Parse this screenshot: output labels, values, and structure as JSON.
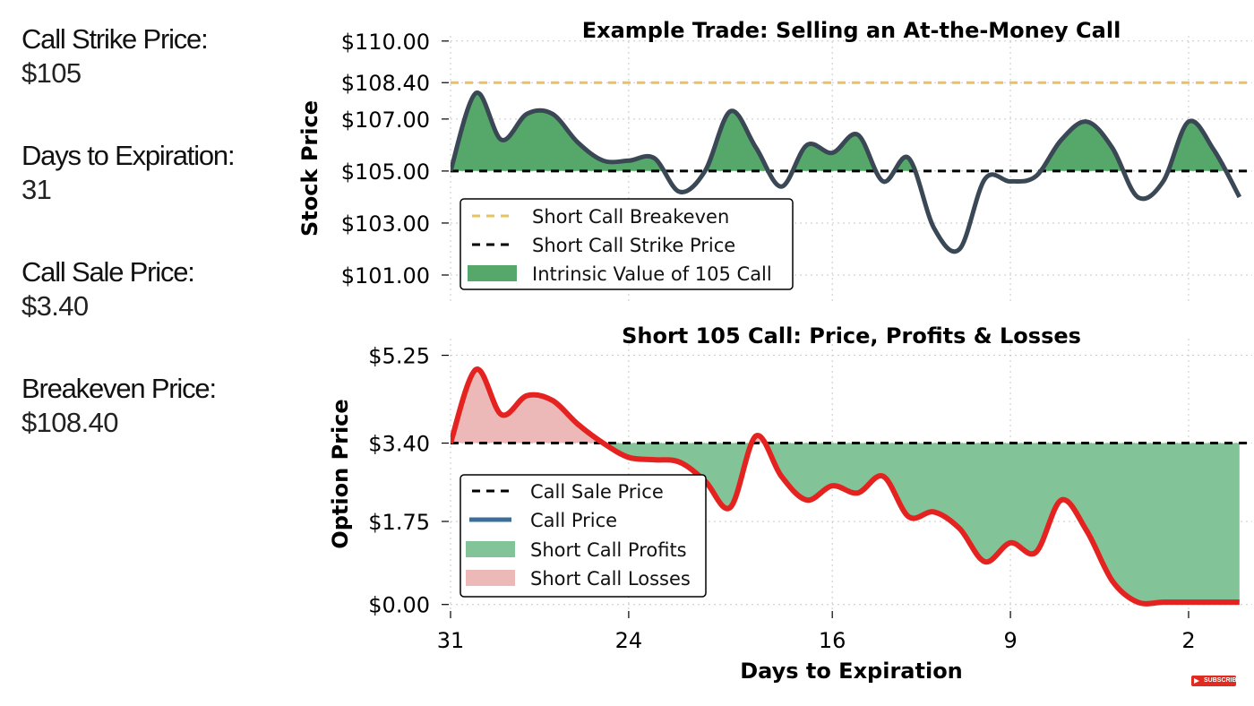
{
  "info": {
    "items": [
      {
        "label": "Call Strike Price:",
        "value": "$105"
      },
      {
        "label": "Days to Expiration:",
        "value": "31"
      },
      {
        "label": "Call Sale Price:",
        "value": "$3.40"
      },
      {
        "label": "Breakeven Price:",
        "value": "$108.40"
      }
    ]
  },
  "subscribe_badge": "SUBSCRIBE",
  "colors": {
    "stock_line": "#3a4754",
    "intrinsic_fill": "#55a86a",
    "breakeven": "#e8c25a",
    "option_line": "#e42320",
    "profit_fill": "#82c397",
    "loss_fill": "#edb8b8",
    "call_price_legend": "#3b6f9a"
  },
  "chart_data": [
    {
      "type": "line",
      "title": "Example Trade: Selling an At-the-Money Call",
      "ylabel": "Stock Price",
      "xlabel": "",
      "xlim": [
        31,
        -0.5
      ],
      "ylim": [
        100.0,
        110.2
      ],
      "yticks": [
        "$110.00",
        "$108.40",
        "$107.00",
        "$105.00",
        "$103.00",
        "$101.00"
      ],
      "ytick_values": [
        110,
        108.4,
        107,
        105,
        103,
        101
      ],
      "xticks": [
        31,
        24,
        16,
        9,
        2
      ],
      "grid": true,
      "legend_position": "lower-left",
      "legend": [
        "Short Call Breakeven",
        "Short Call Strike Price",
        "Intrinsic Value of 105 Call"
      ],
      "reference_lines": [
        {
          "name": "Short Call Breakeven",
          "y": 108.4,
          "style": "dashed"
        },
        {
          "name": "Short Call Strike Price",
          "y": 105.0,
          "style": "dashed"
        }
      ],
      "series": [
        {
          "name": "Stock Price",
          "x": [
            31,
            30,
            29,
            28,
            27,
            26,
            25,
            24,
            23,
            22,
            21,
            20,
            19,
            18,
            17,
            16,
            15,
            14,
            13,
            12,
            11,
            10,
            9,
            8,
            7,
            6,
            5,
            4,
            3,
            2,
            1,
            0
          ],
          "y": [
            105.0,
            108.0,
            106.2,
            107.2,
            107.2,
            106.1,
            105.4,
            105.4,
            105.5,
            104.2,
            105.0,
            107.3,
            105.9,
            104.4,
            106.0,
            105.7,
            106.4,
            104.6,
            105.5,
            102.8,
            102.0,
            104.7,
            104.6,
            104.8,
            106.2,
            106.9,
            105.9,
            104.0,
            104.6,
            106.9,
            105.8,
            104.0
          ]
        }
      ]
    },
    {
      "type": "line",
      "title": "Short 105 Call: Price, Profits & Losses",
      "ylabel": "Option Price",
      "xlabel": "Days to Expiration",
      "xlim": [
        31,
        -0.5
      ],
      "ylim": [
        -0.1,
        5.6
      ],
      "yticks": [
        "$5.25",
        "$3.40",
        "$1.75",
        "$0.00"
      ],
      "ytick_values": [
        5.25,
        3.4,
        1.75,
        0.0
      ],
      "xticks": [
        31,
        24,
        16,
        9,
        2
      ],
      "grid": true,
      "legend_position": "lower-left",
      "legend": [
        "Call Sale Price",
        "Call Price",
        "Short Call Profits",
        "Short Call Losses"
      ],
      "reference_lines": [
        {
          "name": "Call Sale Price",
          "y": 3.4,
          "style": "dashed"
        }
      ],
      "series": [
        {
          "name": "Call Price",
          "x": [
            31,
            30,
            29,
            28,
            27,
            26,
            25,
            24,
            23,
            22,
            21,
            20,
            19,
            18,
            17,
            16,
            15,
            14,
            13,
            12,
            11,
            10,
            9,
            8,
            7,
            6,
            5,
            4,
            3,
            2,
            1,
            0
          ],
          "y": [
            3.4,
            4.95,
            4.0,
            4.4,
            4.3,
            3.8,
            3.4,
            3.1,
            3.05,
            3.0,
            2.6,
            2.05,
            3.55,
            2.7,
            2.2,
            2.5,
            2.35,
            2.7,
            1.85,
            1.95,
            1.6,
            0.9,
            1.3,
            1.1,
            2.2,
            1.55,
            0.5,
            0.05,
            0.05,
            0.05,
            0.05,
            0.05
          ]
        }
      ]
    }
  ]
}
